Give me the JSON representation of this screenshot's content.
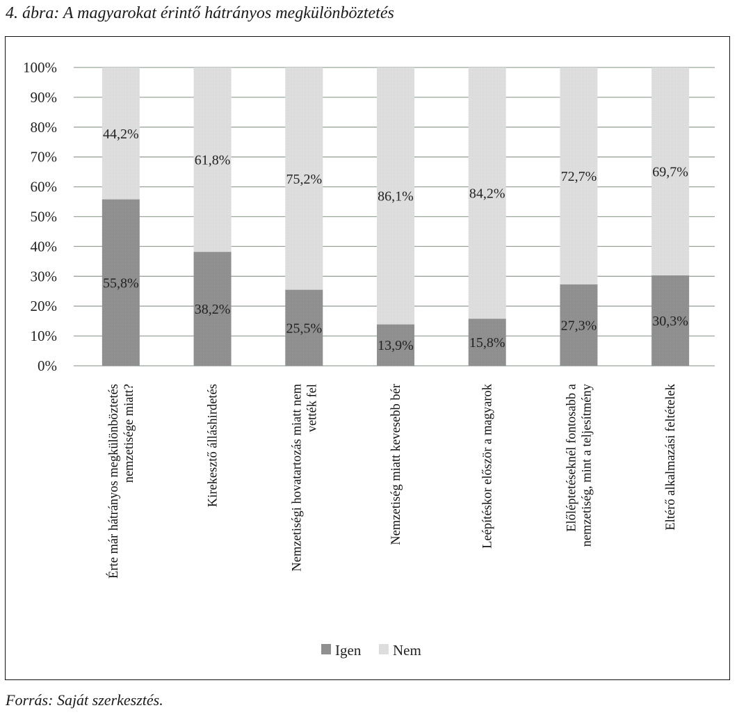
{
  "figure": {
    "caption": "4. ábra: A magyarokat érintő hátrányos megkülönböztetés",
    "source": "Forrás: Saját szerkesztés."
  },
  "colors": {
    "igen": "#8c8c8c",
    "nem": "#dcdcdc",
    "grid": "#9aa59a"
  },
  "chart_data": {
    "type": "bar",
    "stacked": true,
    "percent_stacked": true,
    "title": "4. ábra: A magyarokat érintő hátrányos megkülönböztetés",
    "xlabel": "",
    "ylabel": "",
    "ylim": [
      0,
      100
    ],
    "yticks": [
      "0%",
      "10%",
      "20%",
      "30%",
      "40%",
      "50%",
      "60%",
      "70%",
      "80%",
      "90%",
      "100%"
    ],
    "grid": true,
    "legend_position": "bottom",
    "categories": [
      [
        "Érte már hátrányos megkülönböztetés",
        "nemzetisége miatt?"
      ],
      [
        "Kirekesztő álláshirdetés"
      ],
      [
        "Nemzetiségi hovatartozás miatt nem",
        "vették fel"
      ],
      [
        "Nemzetiség miatt kevesebb bér"
      ],
      [
        "Leépítéskor először a magyarok"
      ],
      [
        "Előléptetéseknél fontosabb a",
        "nemzetiség, mint a teljesítmény"
      ],
      [
        "Eltérő alkalmazási feltételek"
      ]
    ],
    "series": [
      {
        "name": "Igen",
        "values": [
          55.8,
          38.2,
          25.5,
          13.9,
          15.8,
          27.3,
          30.3
        ],
        "labels": [
          "55,8%",
          "38,2%",
          "25,5%",
          "13,9%",
          "15,8%",
          "27,3%",
          "30,3%"
        ]
      },
      {
        "name": "Nem",
        "values": [
          44.2,
          61.8,
          75.2,
          86.1,
          84.2,
          72.7,
          69.7
        ],
        "labels": [
          "44,2%",
          "61,8%",
          "75,2%",
          "86,1%",
          "84,2%",
          "72,7%",
          "69,7%"
        ]
      }
    ]
  }
}
